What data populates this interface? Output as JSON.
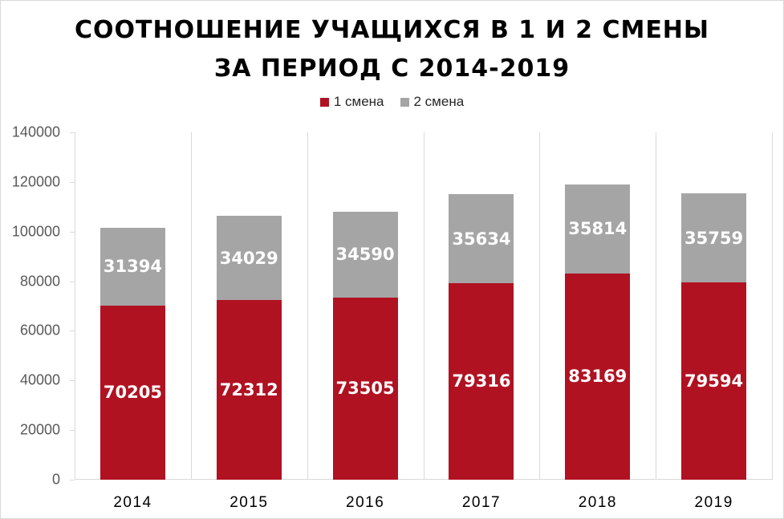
{
  "chart_data": {
    "type": "bar",
    "stacked": true,
    "title": "СООТНОШЕНИЕ УЧАЩИХСЯ В 1 И 2 СМЕНЫ ЗА ПЕРИОД С 2014-2019",
    "title_lines": [
      "СООТНОШЕНИЕ УЧАЩИХСЯ В 1 И 2 СМЕНЫ",
      "ЗА ПЕРИОД С 2014-2019"
    ],
    "categories": [
      "2014",
      "2015",
      "2016",
      "2017",
      "2018",
      "2019"
    ],
    "series": [
      {
        "name": "1 смена",
        "color": "#b01222",
        "values": [
          70205,
          72312,
          73505,
          79316,
          83169,
          79594
        ]
      },
      {
        "name": "2 смена",
        "color": "#a5a5a5",
        "values": [
          31394,
          34029,
          34590,
          35634,
          35814,
          35759
        ]
      }
    ],
    "xlabel": "",
    "ylabel": "",
    "ylim": [
      0,
      140000
    ],
    "yticks": [
      "0",
      "20000",
      "40000",
      "60000",
      "80000",
      "100000",
      "120000",
      "140000"
    ],
    "grid": {
      "vertical": true,
      "horizontal": false
    },
    "legend_position": "top",
    "data_labels": true
  }
}
